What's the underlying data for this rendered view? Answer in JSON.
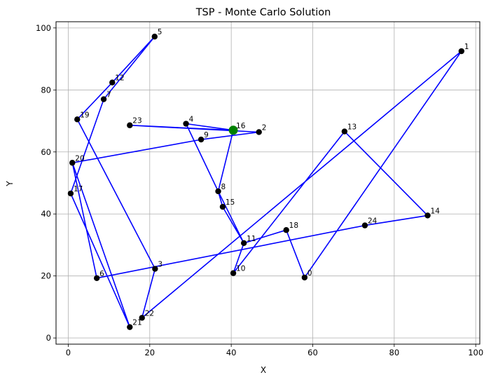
{
  "chart_data": {
    "type": "line",
    "title": "TSP - Monte Carlo Solution",
    "xlabel": "X",
    "ylabel": "Y",
    "xlim": [
      -3,
      101
    ],
    "ylim": [
      -2,
      102
    ],
    "xticks": [
      0,
      20,
      40,
      60,
      80,
      100
    ],
    "yticks": [
      0,
      20,
      40,
      60,
      80,
      100
    ],
    "grid": true,
    "route_color": "#0000ff",
    "point_color": "#000000",
    "start_color": "#008000",
    "start_point": {
      "x": 40.5,
      "y": 67.0
    },
    "cities": [
      {
        "id": "0",
        "x": 58.0,
        "y": 19.5
      },
      {
        "id": "1",
        "x": 96.5,
        "y": 92.5
      },
      {
        "id": "2",
        "x": 46.8,
        "y": 66.4
      },
      {
        "id": "3",
        "x": 21.3,
        "y": 22.3
      },
      {
        "id": "4",
        "x": 28.9,
        "y": 69.1
      },
      {
        "id": "5",
        "x": 21.2,
        "y": 97.2
      },
      {
        "id": "6",
        "x": 7.0,
        "y": 19.3
      },
      {
        "id": "7",
        "x": 8.7,
        "y": 77.0
      },
      {
        "id": "8",
        "x": 36.8,
        "y": 47.3
      },
      {
        "id": "9",
        "x": 32.6,
        "y": 64.0
      },
      {
        "id": "10",
        "x": 40.5,
        "y": 20.9
      },
      {
        "id": "11",
        "x": 43.1,
        "y": 30.6
      },
      {
        "id": "12",
        "x": 10.8,
        "y": 82.4
      },
      {
        "id": "13",
        "x": 67.8,
        "y": 66.6
      },
      {
        "id": "14",
        "x": 88.2,
        "y": 39.5
      },
      {
        "id": "15",
        "x": 37.9,
        "y": 42.3
      },
      {
        "id": "16",
        "x": 40.5,
        "y": 67.0
      },
      {
        "id": "17",
        "x": 0.6,
        "y": 46.6
      },
      {
        "id": "18",
        "x": 53.5,
        "y": 34.8
      },
      {
        "id": "19",
        "x": 2.2,
        "y": 70.5
      },
      {
        "id": "20",
        "x": 1.0,
        "y": 56.5
      },
      {
        "id": "21",
        "x": 15.1,
        "y": 3.5
      },
      {
        "id": "22",
        "x": 18.1,
        "y": 6.5
      },
      {
        "id": "23",
        "x": 15.1,
        "y": 68.6
      }
    ],
    "extra_points": [
      {
        "id": "24",
        "x": 72.8,
        "y": 36.3
      }
    ],
    "route": [
      "16",
      "4",
      "8",
      "15",
      "11",
      "10",
      "13",
      "14",
      "24",
      "6",
      "20",
      "21",
      "17",
      "7",
      "5",
      "12",
      "19",
      "3",
      "22",
      "1",
      "0",
      "18",
      "11",
      "8",
      "16",
      "23",
      "2",
      "9",
      "20"
    ]
  }
}
